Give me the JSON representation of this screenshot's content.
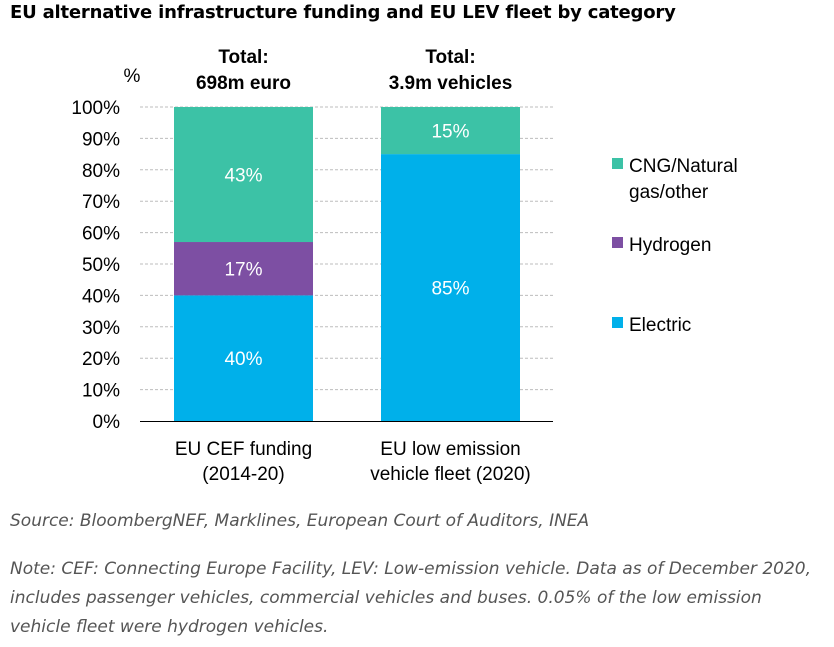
{
  "title": "EU alternative infrastructure funding and EU LEV fleet by category",
  "source": "Source: BloombergNEF, Marklines, European Court of Auditors, INEA",
  "note": "Note: CEF: Connecting Europe Facility, LEV: Low-emission vehicle. Data as of December 2020, includes passenger vehicles, commercial vehicles and buses. 0.05% of the low emission vehicle fleet were hydrogen vehicles.",
  "chart_data": {
    "type": "bar",
    "stacked": true,
    "ylabel": "%",
    "ylim": [
      0,
      100
    ],
    "yticks": [
      "0%",
      "10%",
      "20%",
      "30%",
      "40%",
      "50%",
      "60%",
      "70%",
      "80%",
      "90%",
      "100%"
    ],
    "grid": true,
    "legend_position": "right",
    "categories": [
      [
        "EU CEF funding",
        "(2014-20)"
      ],
      [
        "EU low emission",
        "vehicle fleet (2020)"
      ]
    ],
    "totals": [
      [
        "Total:",
        "698m euro"
      ],
      [
        "Total:",
        "3.9m vehicles"
      ]
    ],
    "series": [
      {
        "name": "Electric",
        "values": [
          40,
          85
        ],
        "labels": [
          "40%",
          "85%"
        ],
        "color": "#00B0EA"
      },
      {
        "name": "Hydrogen",
        "values": [
          17,
          0
        ],
        "labels": [
          "17%",
          ""
        ],
        "color": "#7D4FA3"
      },
      {
        "name": "CNG/Natural gas/other",
        "legend_lines": [
          "CNG/Natural",
          "gas/other"
        ],
        "values": [
          43,
          15
        ],
        "labels": [
          "43%",
          "15%"
        ],
        "color": "#3CC2A6"
      }
    ],
    "legend_order": [
      2,
      1,
      0
    ]
  }
}
